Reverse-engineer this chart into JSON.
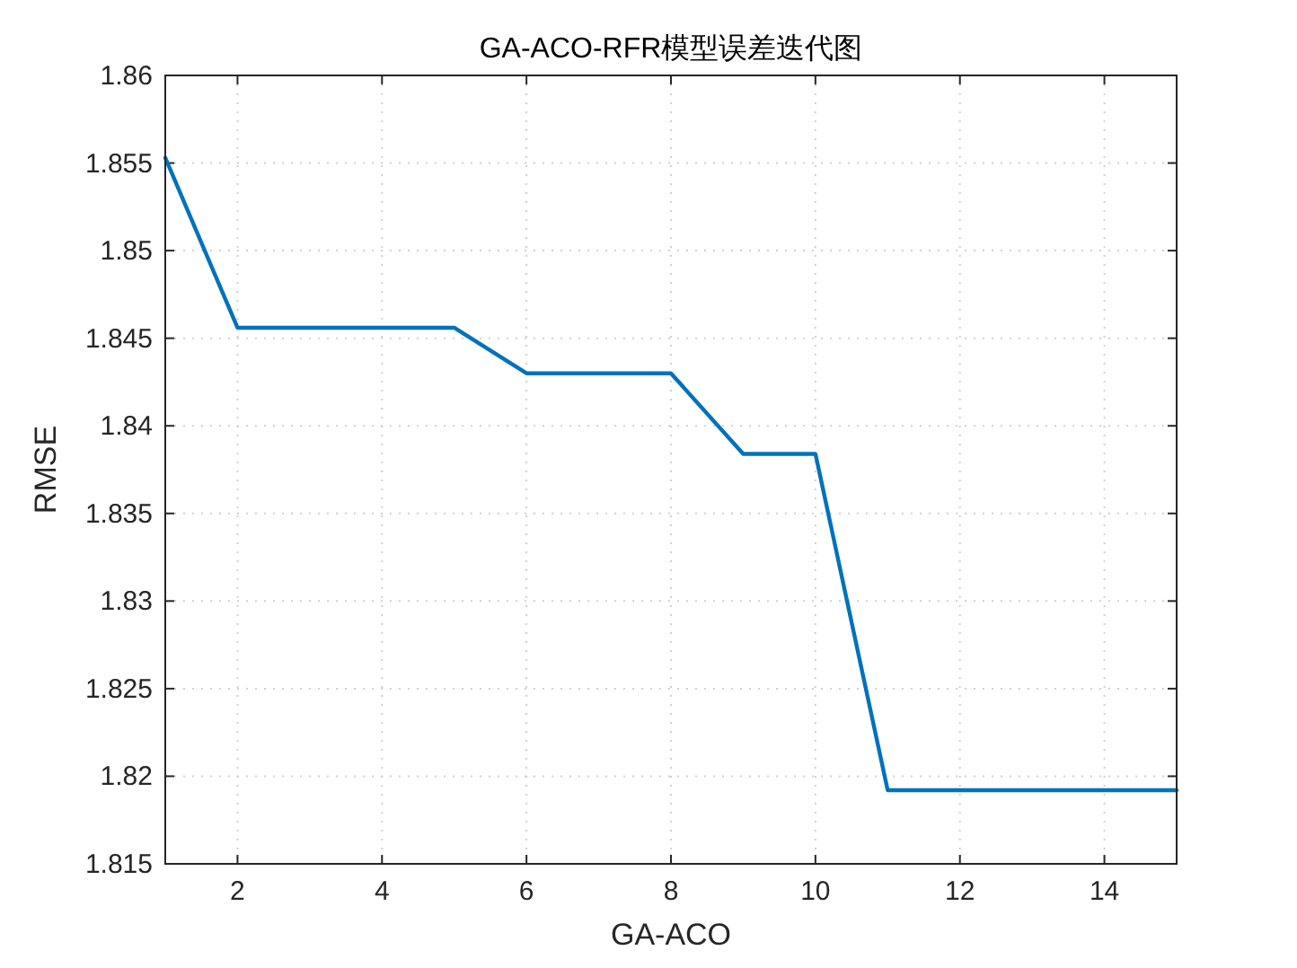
{
  "chart_data": {
    "type": "line",
    "title": "GA-ACO-RFR模型误差迭代图",
    "xlabel": "GA-ACO",
    "ylabel": "RMSE",
    "x": [
      1,
      2,
      3,
      4,
      5,
      6,
      7,
      8,
      9,
      10,
      11,
      12,
      13,
      14,
      15
    ],
    "series": [
      {
        "color": "#0072bd",
        "values": [
          1.8553,
          1.8456,
          1.8456,
          1.8456,
          1.8456,
          1.843,
          1.843,
          1.843,
          1.8384,
          1.8384,
          1.8192,
          1.8192,
          1.8192,
          1.8192,
          1.8192
        ]
      }
    ],
    "xlim": [
      1,
      15
    ],
    "ylim": [
      1.815,
      1.86
    ],
    "xticks": [
      2,
      4,
      6,
      8,
      10,
      12,
      14
    ],
    "yticks": [
      1.815,
      1.82,
      1.825,
      1.83,
      1.835,
      1.84,
      1.845,
      1.85,
      1.855,
      1.86
    ],
    "grid": true
  }
}
